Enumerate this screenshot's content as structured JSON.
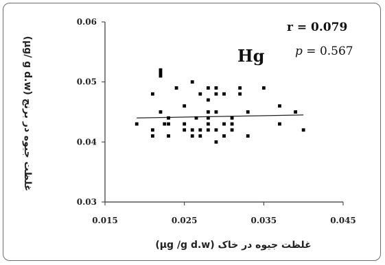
{
  "chart_data": {
    "type": "scatter",
    "title": "",
    "element_label": "Hg",
    "stats": {
      "r_text": "r = 0.079",
      "p_symbol": "p",
      "p_value_text": " = 0.567"
    },
    "xlabel": "غلظت جیوه در خاک (μg /g d.w)",
    "ylabel": "غلظت جیوه در برنج (μg/ g d.w)",
    "xlim": [
      0.015,
      0.045
    ],
    "ylim": [
      0.03,
      0.06
    ],
    "x_ticks": [
      0.015,
      0.025,
      0.035,
      0.045
    ],
    "x_tick_labels": [
      "0.015",
      "0.025",
      "0.035",
      "0.045"
    ],
    "y_ticks": [
      0.03,
      0.04,
      0.05,
      0.06
    ],
    "y_tick_labels": [
      "0.03",
      "0.04",
      "0.05",
      "0.06"
    ],
    "grid": false,
    "legend": "none",
    "trendline": {
      "x": [
        0.019,
        0.04
      ],
      "y": [
        0.044,
        0.0445
      ]
    },
    "series": [
      {
        "x": [
          0.019,
          0.021,
          0.021,
          0.021,
          0.022,
          0.022,
          0.022,
          0.022,
          0.0225,
          0.023,
          0.023,
          0.023,
          0.024,
          0.025,
          0.025,
          0.025,
          0.026,
          0.026,
          0.026,
          0.0265,
          0.027,
          0.027,
          0.027,
          0.028,
          0.028,
          0.028,
          0.028,
          0.028,
          0.028,
          0.029,
          0.029,
          0.029,
          0.029,
          0.029,
          0.03,
          0.03,
          0.03,
          0.031,
          0.031,
          0.031,
          0.032,
          0.032,
          0.033,
          0.033,
          0.035,
          0.037,
          0.037,
          0.039,
          0.04
        ],
        "y": [
          0.043,
          0.048,
          0.042,
          0.041,
          0.052,
          0.0515,
          0.051,
          0.045,
          0.043,
          0.044,
          0.043,
          0.041,
          0.049,
          0.046,
          0.043,
          0.042,
          0.05,
          0.042,
          0.041,
          0.044,
          0.048,
          0.042,
          0.041,
          0.049,
          0.047,
          0.045,
          0.044,
          0.043,
          0.042,
          0.049,
          0.048,
          0.045,
          0.042,
          0.04,
          0.048,
          0.043,
          0.041,
          0.044,
          0.043,
          0.042,
          0.049,
          0.048,
          0.045,
          0.041,
          0.049,
          0.046,
          0.043,
          0.045,
          0.042
        ]
      }
    ]
  },
  "colors": {
    "marker": "#000000",
    "axis": "#333333",
    "frame": "#6a6a6a",
    "trendline": "#222222"
  }
}
